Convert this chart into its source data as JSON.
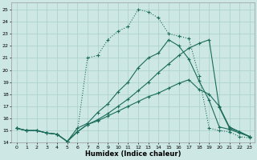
{
  "xlabel": "Humidex (Indice chaleur)",
  "bg_color": "#cde8e4",
  "grid_color": "#aacfca",
  "line_color": "#1a6b5a",
  "xlim": [
    -0.5,
    23.5
  ],
  "ylim": [
    14.0,
    25.6
  ],
  "xticks": [
    0,
    1,
    2,
    3,
    4,
    5,
    6,
    7,
    8,
    9,
    10,
    11,
    12,
    13,
    14,
    15,
    16,
    17,
    18,
    19,
    20,
    21,
    22,
    23
  ],
  "yticks": [
    14,
    15,
    16,
    17,
    18,
    19,
    20,
    21,
    22,
    23,
    24,
    25
  ],
  "lines": [
    {
      "y": [
        15.2,
        15.0,
        15.0,
        14.8,
        14.7,
        14.1,
        14.9,
        15.5,
        15.8,
        16.2,
        16.6,
        17.0,
        17.4,
        17.8,
        18.1,
        18.5,
        18.9,
        19.2,
        18.4,
        18.0,
        17.0,
        15.3,
        14.9,
        14.5
      ],
      "style": "solid"
    },
    {
      "y": [
        15.2,
        15.0,
        15.0,
        14.8,
        14.7,
        14.1,
        14.9,
        15.5,
        15.9,
        16.4,
        17.0,
        17.6,
        18.3,
        19.0,
        19.8,
        20.5,
        21.2,
        21.8,
        22.2,
        22.5,
        16.9,
        15.2,
        14.9,
        14.5
      ],
      "style": "solid"
    },
    {
      "y": [
        15.2,
        15.0,
        15.0,
        14.8,
        14.7,
        14.1,
        14.9,
        21.0,
        21.2,
        22.5,
        23.2,
        23.6,
        25.0,
        24.8,
        24.3,
        23.0,
        22.8,
        22.6,
        19.5,
        15.2,
        15.0,
        14.9,
        14.5,
        14.4
      ],
      "style": "dotted"
    },
    {
      "y": [
        15.2,
        15.0,
        15.0,
        14.8,
        14.7,
        14.1,
        15.2,
        15.6,
        16.5,
        17.2,
        18.2,
        19.0,
        20.2,
        21.0,
        21.4,
        22.5,
        22.0,
        20.9,
        19.1,
        17.5,
        15.3,
        15.1,
        14.8,
        14.5
      ],
      "style": "solid"
    }
  ]
}
